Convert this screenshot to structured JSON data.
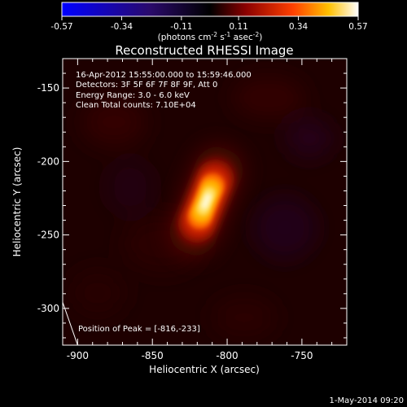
{
  "colorbar": {
    "ticks": [
      "-0.57",
      "-0.34",
      "-0.11",
      "0.11",
      "0.34",
      "0.57"
    ],
    "unit_label": "(photons cm",
    "unit_exp1": "-2",
    "unit_mid": " s",
    "unit_exp2": "-1",
    "unit_mid2": " asec",
    "unit_exp3": "-2",
    "unit_close": ")",
    "range": [
      -0.57,
      0.57
    ]
  },
  "annotations": {
    "time": "16-Apr-2012 15:55:00.000 to 15:59:46.000",
    "detectors": "Detectors: 3F 5F 6F 7F 8F 9F, Att 0",
    "energy": "Energy Range: 3.0 - 6.0 keV",
    "clean": "Clean    Total counts: 7.10E+04",
    "peak": "Position of Peak = [-816,-233]"
  },
  "footer": {
    "date": "1-May-2014 09:20"
  },
  "chart_data": {
    "type": "heatmap",
    "title": "Reconstructed RHESSI Image",
    "xlabel": "Heliocentric X (arcsec)",
    "ylabel": "Heliocentric Y (arcsec)",
    "xlim": [
      -910,
      -720
    ],
    "ylim": [
      -325,
      -130
    ],
    "x_ticks": [
      -900,
      -850,
      -800,
      -750
    ],
    "y_ticks": [
      -300,
      -250,
      -200,
      -150
    ],
    "x_tick_labels": [
      "-900",
      "-850",
      "-800",
      "-750"
    ],
    "y_tick_labels": [
      "-300",
      "-250",
      "-200",
      "-150"
    ],
    "colormap": "hot",
    "peak": {
      "x": -816,
      "y": -233,
      "value": 0.57
    },
    "source_shape": {
      "center_x": -814,
      "center_y": -227,
      "length": 40,
      "width": 17,
      "angle_deg": -68
    },
    "limb_line": [
      [
        -912,
        -290
      ],
      [
        -900,
        -325
      ]
    ]
  }
}
